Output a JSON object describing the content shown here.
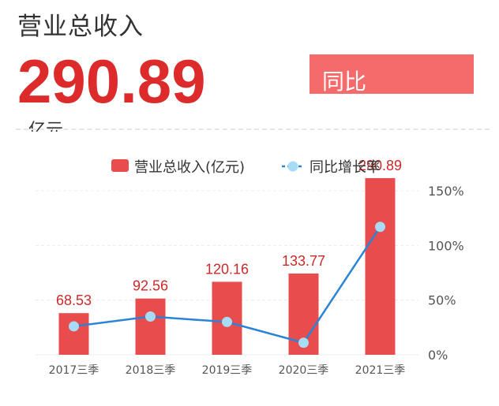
{
  "header": {
    "title": "营业总收入",
    "value": "290.89",
    "unit": "亿元",
    "badge_label": "同比"
  },
  "colors": {
    "bar": "#e84c4c",
    "line": "#2b83d6",
    "point": "#a8dcf6",
    "value_label": "#cc2a2a",
    "grid": "#ececec",
    "axis_text": "#555555"
  },
  "chart_data": {
    "type": "bar",
    "title": "",
    "categories": [
      "2017三季",
      "2018三季",
      "2019三季",
      "2020三季",
      "2021三季"
    ],
    "series": [
      {
        "name": "营业总收入(亿元)",
        "type": "bar",
        "axis": "left",
        "values": [
          68.53,
          92.56,
          120.16,
          133.77,
          290.89
        ],
        "value_labels": [
          "68.53",
          "92.56",
          "120.16",
          "133.77",
          "290.89"
        ]
      },
      {
        "name": "同比增长率",
        "type": "line",
        "axis": "right",
        "unit": "%",
        "values": [
          26,
          35,
          30,
          11,
          117
        ]
      }
    ],
    "y_left": {
      "range": [
        0,
        270
      ],
      "ticks_shown": false
    },
    "y_right": {
      "range": [
        0,
        150
      ],
      "ticks": [
        0,
        50,
        100,
        150
      ],
      "tick_labels": [
        "0%",
        "50%",
        "100%",
        "150%"
      ]
    },
    "grid": true,
    "legend": {
      "position": "top-center"
    }
  }
}
